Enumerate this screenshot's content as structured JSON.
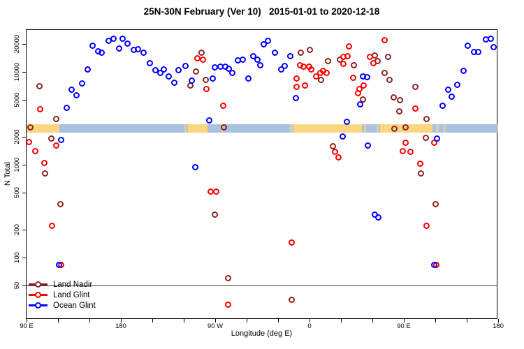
{
  "chart_data": {
    "type": "scatter",
    "title": "25N-30N February (Ver 10)   2015-01-01 to 2020-12-18",
    "xlabel": "Longitude (deg E)",
    "ylabel": "N Total",
    "y_scale": "log",
    "y_ticks": [
      50,
      100,
      200,
      500,
      1000,
      2000,
      5000,
      10000,
      20000
    ],
    "ylim": [
      28,
      26000
    ],
    "x_axis_span_deg": 450,
    "x_tick_positions_deg": [
      0,
      90,
      180,
      270,
      360,
      450
    ],
    "x_tick_labels": [
      "90 E",
      "180",
      "90 W",
      "0",
      "90 E",
      "180"
    ],
    "x_minor_tick_step_deg": 30,
    "reference_line_y": 50,
    "grid": false,
    "legend_position": "bottom-left",
    "map_band": {
      "description": "land/ocean strip along longitude at 25N-30N",
      "ocean_color": "#A9C2E2",
      "land_color": "#FBD681",
      "segments": [
        {
          "from": 0,
          "to": 31,
          "type": "land"
        },
        {
          "from": 31,
          "to": 154,
          "type": "ocean"
        },
        {
          "from": 154,
          "to": 172.7,
          "type": "land"
        },
        {
          "from": 172.7,
          "to": 254.7,
          "type": "ocean"
        },
        {
          "from": 254.7,
          "to": 320,
          "type": "land"
        },
        {
          "from": 320,
          "to": 337.3,
          "type": "ocean"
        },
        {
          "from": 337.3,
          "to": 387.3,
          "type": "land"
        },
        {
          "from": 387.3,
          "to": 450,
          "type": "ocean"
        }
      ],
      "details": [
        {
          "d": 150.7,
          "w": 2.7,
          "o": 0.55
        },
        {
          "d": 185.7,
          "w": 1.7,
          "o": 1
        },
        {
          "d": 251.3,
          "w": 2.7,
          "o": 0.5
        },
        {
          "d": 322,
          "w": 2,
          "o": 0.7
        },
        {
          "d": 327,
          "w": 1.3,
          "o": 0.6
        },
        {
          "d": 334,
          "w": 1.7,
          "o": 0.6
        },
        {
          "d": 390.7,
          "w": 2.7,
          "o": 0.5
        },
        {
          "d": 397.3,
          "w": 2.7,
          "o": 0.45
        }
      ]
    },
    "series": [
      {
        "name": "Land Nadir",
        "color": "#8B2323",
        "points": [
          [
            12.7,
            7000
          ],
          [
            18,
            800
          ],
          [
            4,
            2500
          ],
          [
            24,
            1900
          ],
          [
            28.7,
            3100
          ],
          [
            32.7,
            370
          ],
          [
            156.7,
            7100
          ],
          [
            162,
            10000
          ],
          [
            167.3,
            16000
          ],
          [
            171.3,
            8100
          ],
          [
            180,
            290
          ],
          [
            188.7,
            2500
          ],
          [
            192.7,
            60
          ],
          [
            253.3,
            35
          ],
          [
            262,
            16000
          ],
          [
            270.7,
            17000
          ],
          [
            281.3,
            8100
          ],
          [
            288,
            13000
          ],
          [
            292.7,
            1570
          ],
          [
            299.3,
            13500
          ],
          [
            312.7,
            11700
          ],
          [
            321.3,
            5000
          ],
          [
            332.7,
            15000
          ],
          [
            335.3,
            13000
          ],
          [
            345.3,
            14400
          ],
          [
            342,
            9600
          ],
          [
            346.7,
            8100
          ],
          [
            350.7,
            5300
          ],
          [
            356.7,
            4900
          ],
          [
            356,
            3700
          ],
          [
            371.3,
            6800
          ],
          [
            351.3,
            2400
          ],
          [
            362,
            2500
          ],
          [
            382,
            3100
          ],
          [
            381.3,
            1930
          ],
          [
            376.7,
            800
          ],
          [
            390.7,
            370
          ]
        ]
      },
      {
        "name": "Land Glint",
        "color": "#FF0000",
        "points": [
          [
            2.7,
            1740
          ],
          [
            8.7,
            1390
          ],
          [
            13.3,
            3900
          ],
          [
            17.3,
            1040
          ],
          [
            24.7,
            218
          ],
          [
            28.7,
            1600
          ],
          [
            33.3,
            83
          ],
          [
            163.3,
            13900
          ],
          [
            168.7,
            13500
          ],
          [
            172,
            6500
          ],
          [
            176,
            510
          ],
          [
            181.3,
            510
          ],
          [
            188,
            4300
          ],
          [
            192.7,
            31
          ],
          [
            253.3,
            144
          ],
          [
            258,
            8400
          ],
          [
            258,
            6800
          ],
          [
            261.3,
            11700
          ],
          [
            264.7,
            11300
          ],
          [
            266,
            7100
          ],
          [
            270,
            11300
          ],
          [
            272,
            10500
          ],
          [
            276.7,
            8900
          ],
          [
            280.7,
            9700
          ],
          [
            283.3,
            10200
          ],
          [
            286.7,
            9600
          ],
          [
            294.7,
            1370
          ],
          [
            298,
            1200
          ],
          [
            302.7,
            14400
          ],
          [
            302.7,
            12200
          ],
          [
            306.7,
            14700
          ],
          [
            308,
            18700
          ],
          [
            312,
            8600
          ],
          [
            316.7,
            5900
          ],
          [
            318,
            6500
          ],
          [
            322,
            7100
          ],
          [
            328,
            14400
          ],
          [
            331.3,
            12400
          ],
          [
            342,
            22000
          ],
          [
            359.3,
            1390
          ],
          [
            362,
            1700
          ],
          [
            366.7,
            1370
          ],
          [
            371.3,
            4000
          ],
          [
            376,
            1020
          ],
          [
            382,
            218
          ],
          [
            389.3,
            1700
          ],
          [
            391.3,
            83
          ]
        ]
      },
      {
        "name": "Ocean Glint",
        "color": "#0000FF",
        "points": [
          [
            31.3,
            83
          ],
          [
            33.3,
            1840
          ],
          [
            38.7,
            4100
          ],
          [
            43.3,
            6400
          ],
          [
            48,
            5600
          ],
          [
            53.3,
            7500
          ],
          [
            58.7,
            10600
          ],
          [
            63.3,
            19000
          ],
          [
            68.7,
            16600
          ],
          [
            72,
            16000
          ],
          [
            78.7,
            21500
          ],
          [
            83.3,
            22700
          ],
          [
            88.7,
            17800
          ],
          [
            92,
            22700
          ],
          [
            96.7,
            20100
          ],
          [
            102.7,
            17100
          ],
          [
            106.7,
            17400
          ],
          [
            112,
            16000
          ],
          [
            118,
            12400
          ],
          [
            123.3,
            10400
          ],
          [
            128,
            9700
          ],
          [
            131.3,
            10600
          ],
          [
            136,
            8900
          ],
          [
            141.3,
            7600
          ],
          [
            145.3,
            10400
          ],
          [
            152,
            11500
          ],
          [
            158,
            8000
          ],
          [
            161.3,
            940
          ],
          [
            174.7,
            3000
          ],
          [
            178,
            8400
          ],
          [
            180,
            11100
          ],
          [
            185.3,
            11300
          ],
          [
            190,
            11300
          ],
          [
            193.3,
            10700
          ],
          [
            196.7,
            9600
          ],
          [
            202,
            13200
          ],
          [
            206.7,
            13400
          ],
          [
            212,
            8400
          ],
          [
            216.7,
            14700
          ],
          [
            220.7,
            13400
          ],
          [
            223.3,
            11700
          ],
          [
            226.7,
            19700
          ],
          [
            230.7,
            21500
          ],
          [
            237.3,
            16000
          ],
          [
            243.3,
            10600
          ],
          [
            246.7,
            11500
          ],
          [
            252,
            14700
          ],
          [
            257.3,
            5200
          ],
          [
            302,
            2000
          ],
          [
            306,
            2900
          ],
          [
            318.7,
            4400
          ],
          [
            321.3,
            8900
          ],
          [
            325.3,
            8700
          ],
          [
            326,
            1600
          ],
          [
            332.7,
            290
          ],
          [
            336,
            270
          ],
          [
            389.3,
            83
          ],
          [
            392,
            1900
          ],
          [
            397.3,
            4300
          ],
          [
            402.7,
            6400
          ],
          [
            406,
            5400
          ],
          [
            411.3,
            7200
          ],
          [
            417.3,
            10200
          ],
          [
            421.3,
            19000
          ],
          [
            427.3,
            16300
          ],
          [
            431.3,
            16300
          ],
          [
            438.7,
            22200
          ],
          [
            443.3,
            22400
          ],
          [
            446,
            18200
          ]
        ]
      }
    ]
  }
}
